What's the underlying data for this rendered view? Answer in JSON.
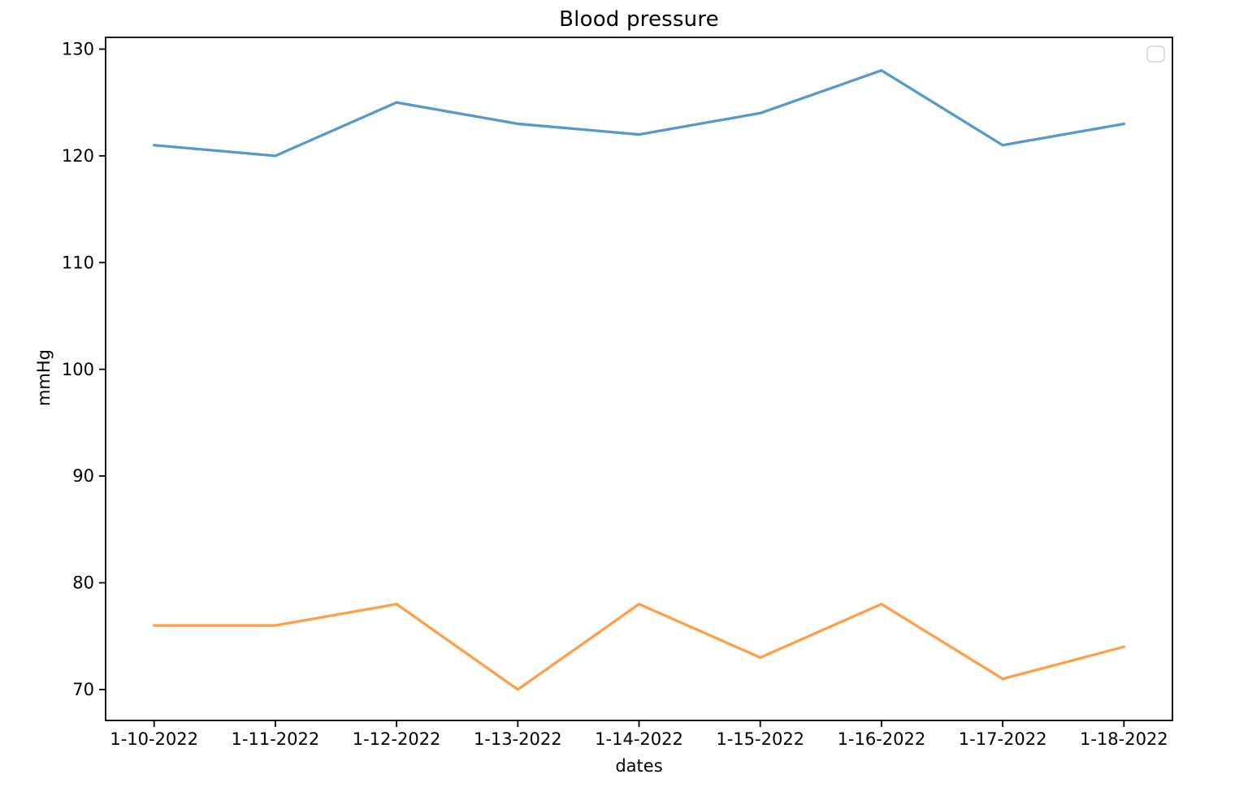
{
  "page": {
    "background": "#ffffff"
  },
  "chart_data": {
    "type": "line",
    "title": "Blood pressure",
    "xlabel": "dates",
    "ylabel": "mmHg",
    "categories": [
      "1-10-2022",
      "1-11-2022",
      "1-12-2022",
      "1-13-2022",
      "1-14-2022",
      "1-15-2022",
      "1-16-2022",
      "1-17-2022",
      "1-18-2022"
    ],
    "series": [
      {
        "name": "upper-blue-line",
        "color": "#5799c7",
        "values": [
          121,
          120,
          125,
          123,
          122,
          124,
          128,
          121,
          123
        ]
      },
      {
        "name": "lower-orange-line",
        "color": "#ff9f4a",
        "values": [
          76,
          76,
          78,
          70,
          78,
          73,
          78,
          71,
          74
        ]
      }
    ],
    "y_ticks": [
      70,
      80,
      90,
      100,
      110,
      120,
      130
    ],
    "ylim": [
      67.1,
      131.1
    ],
    "xlim": [
      -0.4,
      8.4
    ],
    "grid": false,
    "legend": {
      "position": "upper-right",
      "entries": []
    },
    "axis_color": "#000000",
    "legend_border_color": "#d5d5d5"
  }
}
